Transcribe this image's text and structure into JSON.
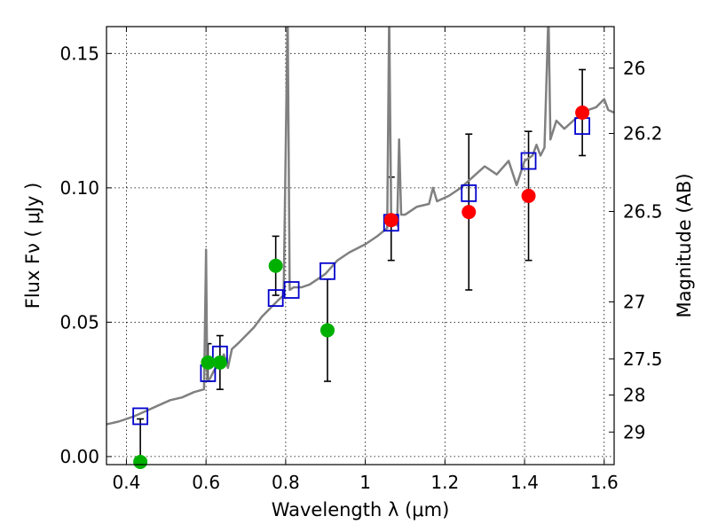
{
  "chart_data": {
    "type": "scatter",
    "xlabel": "Wavelength  λ (μm)",
    "ylabel": "Flux  Fν  ( μJy )",
    "y2label": "Magnitude (AB)",
    "xlim": [
      0.35,
      1.625
    ],
    "ylim": [
      -0.003,
      0.16
    ],
    "grid": true,
    "xticks": [
      0.4,
      0.6,
      0.8,
      1.0,
      1.2,
      1.4,
      1.6
    ],
    "xtick_labels": [
      "0.4",
      "0.6",
      "0.8",
      "1",
      "1.2",
      "1.4",
      "1.6"
    ],
    "yticks": [
      0.0,
      0.05,
      0.1,
      0.15
    ],
    "ytick_labels": [
      "0.00",
      "0.05",
      "0.10",
      "0.15"
    ],
    "y2ticks": [
      {
        "label": "26",
        "mag": 26.0
      },
      {
        "label": "26.2",
        "mag": 26.2
      },
      {
        "label": "26.5",
        "mag": 26.5
      },
      {
        "label": "27",
        "mag": 27.0
      },
      {
        "label": "27.5",
        "mag": 27.5
      },
      {
        "label": "28",
        "mag": 28.0
      },
      {
        "label": "29",
        "mag": 29.0
      }
    ],
    "series": [
      {
        "color": "#808080",
        "marker": "line",
        "points": [
          [
            0.35,
            0.012
          ],
          [
            0.38,
            0.013
          ],
          [
            0.42,
            0.015
          ],
          [
            0.45,
            0.017
          ],
          [
            0.48,
            0.019
          ],
          [
            0.51,
            0.021
          ],
          [
            0.54,
            0.022
          ],
          [
            0.57,
            0.024
          ],
          [
            0.595,
            0.025
          ],
          [
            0.6,
            0.077
          ],
          [
            0.603,
            0.028
          ],
          [
            0.61,
            0.029
          ],
          [
            0.62,
            0.032
          ],
          [
            0.635,
            0.035
          ],
          [
            0.645,
            0.038
          ],
          [
            0.655,
            0.033
          ],
          [
            0.665,
            0.04
          ],
          [
            0.68,
            0.042
          ],
          [
            0.7,
            0.045
          ],
          [
            0.72,
            0.048
          ],
          [
            0.74,
            0.052
          ],
          [
            0.76,
            0.055
          ],
          [
            0.78,
            0.058
          ],
          [
            0.795,
            0.06
          ],
          [
            0.805,
            0.165
          ],
          [
            0.81,
            0.062
          ],
          [
            0.82,
            0.063
          ],
          [
            0.84,
            0.063
          ],
          [
            0.86,
            0.064
          ],
          [
            0.88,
            0.066
          ],
          [
            0.9,
            0.068
          ],
          [
            0.93,
            0.073
          ],
          [
            0.96,
            0.076
          ],
          [
            1.0,
            0.079
          ],
          [
            1.03,
            0.082
          ],
          [
            1.055,
            0.085
          ],
          [
            1.06,
            0.165
          ],
          [
            1.065,
            0.087
          ],
          [
            1.07,
            0.09
          ],
          [
            1.08,
            0.086
          ],
          [
            1.085,
            0.118
          ],
          [
            1.09,
            0.09
          ],
          [
            1.1,
            0.09
          ],
          [
            1.13,
            0.093
          ],
          [
            1.16,
            0.094
          ],
          [
            1.17,
            0.1
          ],
          [
            1.18,
            0.095
          ],
          [
            1.21,
            0.097
          ],
          [
            1.24,
            0.1
          ],
          [
            1.27,
            0.104
          ],
          [
            1.3,
            0.108
          ],
          [
            1.33,
            0.105
          ],
          [
            1.36,
            0.11
          ],
          [
            1.38,
            0.101
          ],
          [
            1.4,
            0.11
          ],
          [
            1.42,
            0.112
          ],
          [
            1.43,
            0.116
          ],
          [
            1.44,
            0.112
          ],
          [
            1.45,
            0.115
          ],
          [
            1.46,
            0.165
          ],
          [
            1.465,
            0.118
          ],
          [
            1.48,
            0.125
          ],
          [
            1.5,
            0.122
          ],
          [
            1.53,
            0.126
          ],
          [
            1.56,
            0.129
          ],
          [
            1.58,
            0.13
          ],
          [
            1.6,
            0.133
          ],
          [
            1.61,
            0.129
          ],
          [
            1.625,
            0.128
          ]
        ]
      },
      {
        "color": "#0000cc",
        "marker": "open-square",
        "points": [
          [
            0.435,
            0.015
          ],
          [
            0.605,
            0.031
          ],
          [
            0.635,
            0.038
          ],
          [
            0.775,
            0.059
          ],
          [
            0.815,
            0.062
          ],
          [
            0.905,
            0.069
          ],
          [
            1.065,
            0.087
          ],
          [
            1.26,
            0.098
          ],
          [
            1.41,
            0.11
          ],
          [
            1.545,
            0.123
          ]
        ]
      },
      {
        "color": "#00b000",
        "marker": "filled-circle",
        "points": [
          {
            "x": 0.435,
            "y": -0.002,
            "err_low": 0.0,
            "err_high": 0.016
          },
          {
            "x": 0.605,
            "y": 0.035,
            "err_low": 0.007,
            "err_high": 0.007
          },
          {
            "x": 0.635,
            "y": 0.035,
            "err_low": 0.01,
            "err_high": 0.01
          },
          {
            "x": 0.775,
            "y": 0.071,
            "err_low": 0.011,
            "err_high": 0.011
          },
          {
            "x": 0.905,
            "y": 0.047,
            "err_low": 0.019,
            "err_high": 0.019
          }
        ]
      },
      {
        "color": "#ff0000",
        "marker": "filled-circle",
        "points": [
          {
            "x": 1.065,
            "y": 0.088,
            "err_low": 0.015,
            "err_high": 0.016
          },
          {
            "x": 1.26,
            "y": 0.091,
            "err_low": 0.029,
            "err_high": 0.029
          },
          {
            "x": 1.41,
            "y": 0.097,
            "err_low": 0.024,
            "err_high": 0.024
          },
          {
            "x": 1.545,
            "y": 0.128,
            "err_low": 0.016,
            "err_high": 0.016
          }
        ]
      }
    ]
  }
}
